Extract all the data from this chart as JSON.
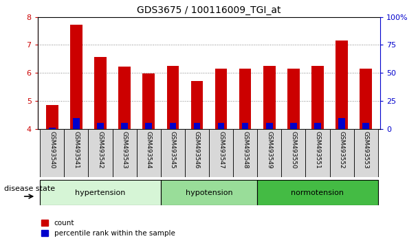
{
  "title": "GDS3675 / 100116009_TGI_at",
  "samples": [
    "GSM493540",
    "GSM493541",
    "GSM493542",
    "GSM493543",
    "GSM493544",
    "GSM493545",
    "GSM493546",
    "GSM493547",
    "GSM493548",
    "GSM493549",
    "GSM493550",
    "GSM493551",
    "GSM493552",
    "GSM493553"
  ],
  "red_values": [
    4.85,
    7.72,
    6.58,
    6.22,
    5.97,
    6.25,
    5.72,
    6.15,
    6.15,
    6.25,
    6.15,
    6.25,
    7.15,
    6.15
  ],
  "blue_values": [
    4.05,
    4.38,
    4.22,
    4.22,
    4.22,
    4.22,
    4.22,
    4.22,
    4.22,
    4.22,
    4.22,
    4.22,
    4.38,
    4.22
  ],
  "ylim": [
    4.0,
    8.0
  ],
  "yticks_left": [
    4,
    5,
    6,
    7,
    8
  ],
  "yticks_right": [
    0,
    25,
    50,
    75,
    100
  ],
  "groups": [
    {
      "label": "hypertension",
      "start": 0,
      "end": 5,
      "color": "#d6f5d6"
    },
    {
      "label": "hypotension",
      "start": 5,
      "end": 9,
      "color": "#99dd99"
    },
    {
      "label": "normotension",
      "start": 9,
      "end": 14,
      "color": "#44bb44"
    }
  ],
  "bar_width": 0.5,
  "red_color": "#cc0000",
  "blue_color": "#0000cc",
  "tick_label_color": "#cc0000",
  "right_axis_color": "#0000cc",
  "legend_red": "count",
  "legend_blue": "percentile rank within the sample",
  "disease_state_label": "disease state"
}
